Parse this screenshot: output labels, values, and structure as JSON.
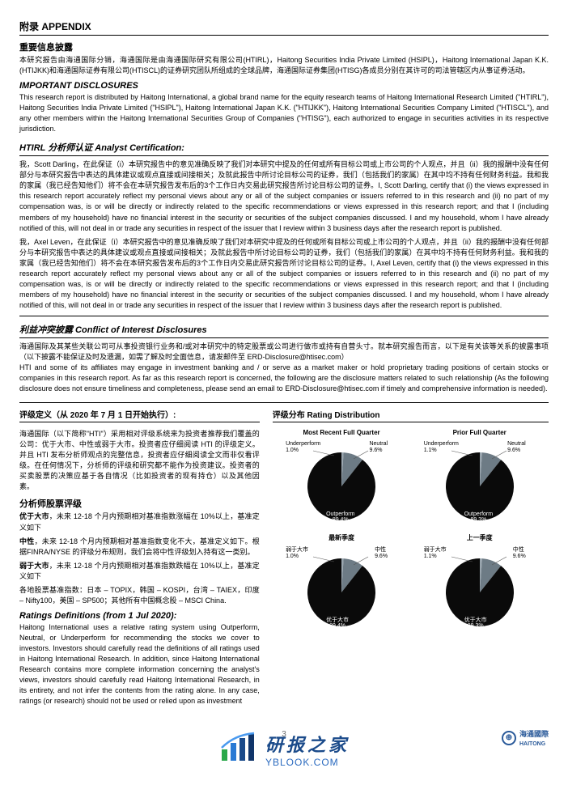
{
  "appendix": {
    "title": "附录 APPENDIX"
  },
  "important_disclosure_cn": {
    "title": "重要信息披露",
    "body": "本研究报告由海通国际分销，海通国际是由海通国际研究有限公司(HTIRL)，Haitong Securities India Private Limited (HSIPL)，Haitong International Japan K.K. (HTIJKK)和海通国际证券有限公司(HTISCL)的证券研究团队所组成的全球品牌，海通国际证券集团(HTISG)各成员分别在其许可的司法管辖区内从事证券活动。"
  },
  "important_disclosure_en": {
    "title": "IMPORTANT DISCLOSURES",
    "body": "This research report is distributed by Haitong International, a global brand name for the equity research teams of Haitong International Research Limited (\"HTIRL\"), Haitong Securities India Private Limited (\"HSIPL\"), Haitong International Japan K.K. (\"HTIJKK\"), Haitong International Securities Company Limited (\"HTISCL\"), and any other members within the Haitong International Securities Group of Companies (\"HTISG\"), each authorized to engage in securities activities in its respective jurisdiction."
  },
  "analyst_cert": {
    "title": "HTIRL 分析师认证 Analyst Certification:",
    "para1": "我，Scott Darling，在此保证（i）本研究报告中的意见准确反映了我们对本研究中提及的任何或所有目标公司或上市公司的个人观点，并且（ii）我的报酬中没有任何部分与本研究报告中表达的具体建议或观点直接或间接相关；及就此报告中所讨论目标公司的证券，我们（包括我们的家属）在其中均不持有任何财务利益。我和我的家属（我已经告知他们）将不会在本研究报告发布后的3个工作日内交易此研究报告所讨论目标公司的证券。I, Scott Darling, certify that (i) the views expressed in this research report accurately reflect my personal views about any or all of the subject companies or issuers referred to in this research and (ii) no part of my compensation was, is or will be directly or indirectly related to the specific recommendations or views expressed in this research report; and that I (including members of my household) have no financial interest in the security or securities of the subject companies discussed. I and my household, whom I have already notified of this, will not deal in or trade any securities in respect of the issuer that I review within 3 business days after the research report is published.",
    "para2": "我，Axel Leven，在此保证（i）本研究报告中的意见准确反映了我们对本研究中提及的任何或所有目标公司或上市公司的个人观点，并且（ii）我的报酬中没有任何部分与本研究报告中表达的具体建议或观点直接或间接相关；及就此报告中所讨论目标公司的证券，我们（包括我们的家属）在其中均不持有任何财务利益。我和我的家属（我已经告知他们）将不会在本研究报告发布后的3个工作日内交易此研究报告所讨论目标公司的证券。I, Axel Leven, certify that (i) the views expressed in this research report accurately reflect my personal views about any or all of the subject companies or issuers referred to in this research and (ii) no part of my compensation was, is or will be directly or indirectly related to the specific recommendations or views expressed in this research report; and that I (including members of my household) have no financial interest in the security or securities of the subject companies discussed. I and my household, whom I have already notified of this, will not deal in or trade any securities in respect of the issuer that I review within 3 business days after the research report is published."
  },
  "conflict": {
    "title": "利益冲突披露 Conflict of Interest Disclosures",
    "body": "海通国际及其某些关联公司可从事投资银行业务和/或对本研究中的特定股票或公司进行做市或持有自营头寸。就本研究报告而言，以下是有关该等关系的披露事项（以下披露不能保证及时及遗漏，如需了解及时全面信息，请发邮件至 ERD-Disclosure@htisec.com）",
    "body_en": "HTI and some of its affiliates may engage in investment banking and / or serve as a market maker or hold proprietary trading positions of certain stocks or companies in this research report. As far as this research report is concerned, the following are the disclosure matters related to such relationship (As the following disclosure does not ensure timeliness and completeness, please send an email to ERD-Disclosure@htisec.com if timely and comprehensive information is needed)."
  },
  "rating_def": {
    "title_cn": "评级定义（从 2020 年 7 月 1 日开始执行）:",
    "title_dist": "评级分布 Rating Distribution",
    "intro": "海通国际（以下简称\"HTI\"）采用相对评级系统来为投资者推荐我们覆盖的公司：优于大市、中性或弱于大市。投资者应仔细阅读 HTI 的评级定义。并且 HTI 发布分析师观点的完整信息，投资者应仔细阅读全文而非仅看评级。在任何情况下，分析师的评级和研究都不能作为投资建议。投资者的买卖股票的决策应基于各自情况（比如投资者的现有持仓）以及其他因素。",
    "sub_analyst_title": "分析师股票评级",
    "r1_label": "优于大市",
    "r1_body": "，未来 12-18 个月内预期相对基准指数涨幅在 10%以上，基准定义如下",
    "r2_label": "中性",
    "r2_body": "，未来 12-18 个月内预期相对基准指数变化不大，基准定义如下。根据FINRA/NYSE 的评级分布规则，我们会将中性评级划入持有这一类别。",
    "r3_label": "弱于大市",
    "r3_body": "，未来 12-18 个月内预期相对基准指数跌幅在 10%以上，基准定义如下",
    "bench": "各地股票基准指数：日本 – TOPIX，韩国 – KOSPI，台湾 – TAIEX，印度 – Nifty100，美国 – SP500；其他所有中国概念股 – MSCI China.",
    "title_en": "Ratings Definitions (from 1 Jul 2020):",
    "body_en": "Haitong International uses a relative rating system using Outperform, Neutral, or Underperform for recommending the stocks we cover to investors. Investors should carefully read the definitions of all ratings used in Haitong International Research. In addition, since Haitong International Research contains more complete information concerning the analyst's views, investors should carefully read Haitong International Research, in its entirety, and not infer the contents from the rating alone. In any case, ratings (or research) should not be used or relied upon as investment"
  },
  "charts": {
    "row1": [
      {
        "label": "Most Recent Full Quarter",
        "segments": [
          {
            "name": "Underperform",
            "value": 1.0,
            "color": "#9aa6af"
          },
          {
            "name": "Neutral",
            "value": 9.6,
            "color": "#6d7b85"
          },
          {
            "name": "Outperform",
            "value": 89.4,
            "color": "#0a0a0a"
          }
        ],
        "annot_under": "Underperform\n1.0%",
        "annot_neutral": "Neutral\n9.6%",
        "annot_out": "Outperform\n89.4%"
      },
      {
        "label": "Prior Full Quarter",
        "segments": [
          {
            "name": "Underperform",
            "value": 1.1,
            "color": "#9aa6af"
          },
          {
            "name": "Neutral",
            "value": 9.6,
            "color": "#6d7b85"
          },
          {
            "name": "Outperform",
            "value": 89.3,
            "color": "#0a0a0a"
          }
        ],
        "annot_under": "Underperform\n1.1%",
        "annot_neutral": "Neutral\n9.6%",
        "annot_out": "Outperform\n89.3%"
      }
    ],
    "row2": [
      {
        "label": "最新季度",
        "segments": [
          {
            "name": "弱于大市",
            "value": 1.0,
            "color": "#9aa6af"
          },
          {
            "name": "中性",
            "value": 9.6,
            "color": "#6d7b85"
          },
          {
            "name": "优于大市",
            "value": 89.4,
            "color": "#0a0a0a"
          }
        ],
        "annot_under": "弱于大市\n1.0%",
        "annot_neutral": "中性\n9.6%",
        "annot_out": "优于大市\n89.4%"
      },
      {
        "label": "上一季度",
        "segments": [
          {
            "name": "弱于大市",
            "value": 1.1,
            "color": "#9aa6af"
          },
          {
            "name": "中性",
            "value": 9.6,
            "color": "#6d7b85"
          },
          {
            "name": "优于大市",
            "value": 89.3,
            "color": "#0a0a0a"
          }
        ],
        "annot_under": "弱于大市\n1.1%",
        "annot_neutral": "中性\n9.6%",
        "annot_out": "优于大市\n89.3%"
      }
    ],
    "start_angle_deg": -90,
    "radius": 42,
    "label_font_size": 7
  },
  "footer": {
    "page_num": "3",
    "brand_cn": "海通國際",
    "brand_en": "HAITONG"
  },
  "watermark": {
    "main": "研报之家",
    "url": "YBLOOK.COM",
    "bar_colors": [
      "#2aa84a",
      "#2a7ad4",
      "#1a4a8a",
      "#10356a"
    ]
  }
}
